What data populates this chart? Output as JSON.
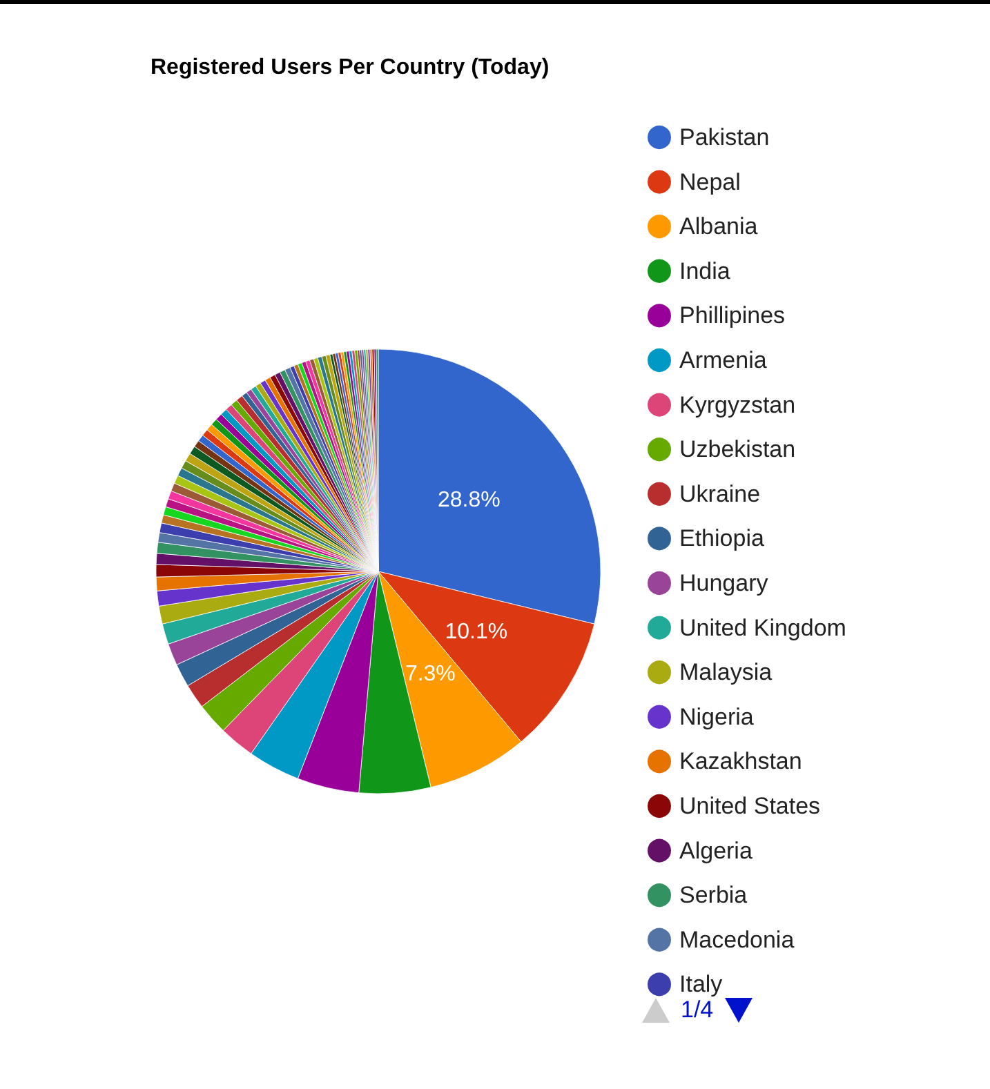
{
  "chart_data": {
    "type": "pie",
    "title": "Registered Users Per Country (Today)",
    "legend": "right",
    "categories": [
      "Pakistan",
      "Nepal",
      "Albania",
      "India",
      "Phillipines",
      "Armenia",
      "Kyrgyzstan",
      "Uzbekistan",
      "Ukraine",
      "Ethiopia",
      "Hungary",
      "United Kingdom",
      "Malaysia",
      "Nigeria",
      "Kazakhstan",
      "United States",
      "Algeria",
      "Serbia",
      "Macedonia",
      "Italy",
      null,
      null,
      null,
      null,
      null,
      null,
      null,
      null,
      null,
      null,
      null,
      null,
      null,
      null,
      null,
      null,
      null,
      null,
      null,
      null,
      null,
      null,
      null,
      null,
      null,
      null,
      null,
      null,
      null,
      null,
      null,
      null,
      null,
      null,
      null,
      null,
      null,
      null,
      null,
      null,
      null,
      null,
      null,
      null,
      null,
      null,
      null,
      null,
      null,
      null,
      null,
      null,
      null,
      null,
      null,
      null,
      null,
      null,
      null,
      null
    ],
    "values": [
      28.8,
      10.1,
      7.3,
      5.2,
      4.5,
      3.8,
      2.6,
      2.3,
      1.8,
      1.7,
      1.6,
      1.5,
      1.3,
      1.1,
      1.0,
      0.9,
      0.8,
      0.8,
      0.7,
      0.7,
      0.6,
      0.6,
      0.6,
      0.6,
      0.6,
      0.6,
      0.6,
      0.6,
      0.6,
      0.6,
      0.5,
      0.5,
      0.5,
      0.5,
      0.5,
      0.5,
      0.5,
      0.5,
      0.5,
      0.5,
      0.4,
      0.4,
      0.4,
      0.4,
      0.4,
      0.4,
      0.4,
      0.4,
      0.4,
      0.4,
      0.3,
      0.3,
      0.3,
      0.3,
      0.3,
      0.3,
      0.3,
      0.3,
      0.3,
      0.3,
      0.2,
      0.2,
      0.2,
      0.2,
      0.2,
      0.2,
      0.2,
      0.2,
      0.2,
      0.2,
      0.15,
      0.15,
      0.15,
      0.15,
      0.15,
      0.15,
      0.15,
      0.15,
      0.15,
      0.15
    ],
    "value_labels": [
      "28.8%",
      "10.1%",
      "7.3%",
      null,
      null,
      null,
      null,
      null,
      null,
      null,
      null,
      null,
      null,
      null,
      null,
      null,
      null,
      null,
      null,
      null,
      null,
      null,
      null,
      null,
      null,
      null,
      null,
      null,
      null,
      null,
      null,
      null,
      null,
      null,
      null,
      null,
      null,
      null,
      null,
      null,
      null,
      null,
      null,
      null,
      null,
      null,
      null,
      null,
      null,
      null,
      null,
      null,
      null,
      null,
      null,
      null,
      null,
      null,
      null,
      null,
      null,
      null,
      null,
      null,
      null,
      null,
      null,
      null,
      null,
      null,
      null,
      null,
      null,
      null,
      null,
      null,
      null,
      null,
      null,
      null
    ],
    "colors": [
      "#3366cc",
      "#dc3912",
      "#ff9900",
      "#109618",
      "#990099",
      "#0099c6",
      "#dd4477",
      "#66aa00",
      "#b82e2e",
      "#316395",
      "#994499",
      "#22aa99",
      "#aaaa11",
      "#6633cc",
      "#e67300",
      "#8b0707",
      "#651067",
      "#329262",
      "#5574a6",
      "#3b3eac",
      "#b77322",
      "#16d620",
      "#b91383",
      "#f4359e",
      "#9c5935",
      "#a9c413",
      "#2a778d",
      "#668d1c",
      "#bea413",
      "#0c5922",
      "#743411",
      "#3366cc",
      "#dc3912",
      "#ff9900",
      "#109618",
      "#990099",
      "#0099c6",
      "#dd4477",
      "#66aa00",
      "#b82e2e",
      "#316395",
      "#994499",
      "#22aa99",
      "#aaaa11",
      "#6633cc",
      "#e67300",
      "#8b0707",
      "#651067",
      "#329262",
      "#5574a6",
      "#3b3eac",
      "#b77322",
      "#16d620",
      "#b91383",
      "#f4359e",
      "#9c5935",
      "#a9c413",
      "#2a778d",
      "#668d1c",
      "#bea413",
      "#0c5922",
      "#743411",
      "#3366cc",
      "#dc3912",
      "#ff9900",
      "#109618",
      "#990099",
      "#0099c6",
      "#dd4477",
      "#66aa00",
      "#b82e2e",
      "#316395",
      "#994499",
      "#22aa99",
      "#aaaa11",
      "#6633cc",
      "#e67300",
      "#8b0707",
      "#651067",
      "#329262"
    ],
    "annotations": [
      "1/4"
    ]
  }
}
